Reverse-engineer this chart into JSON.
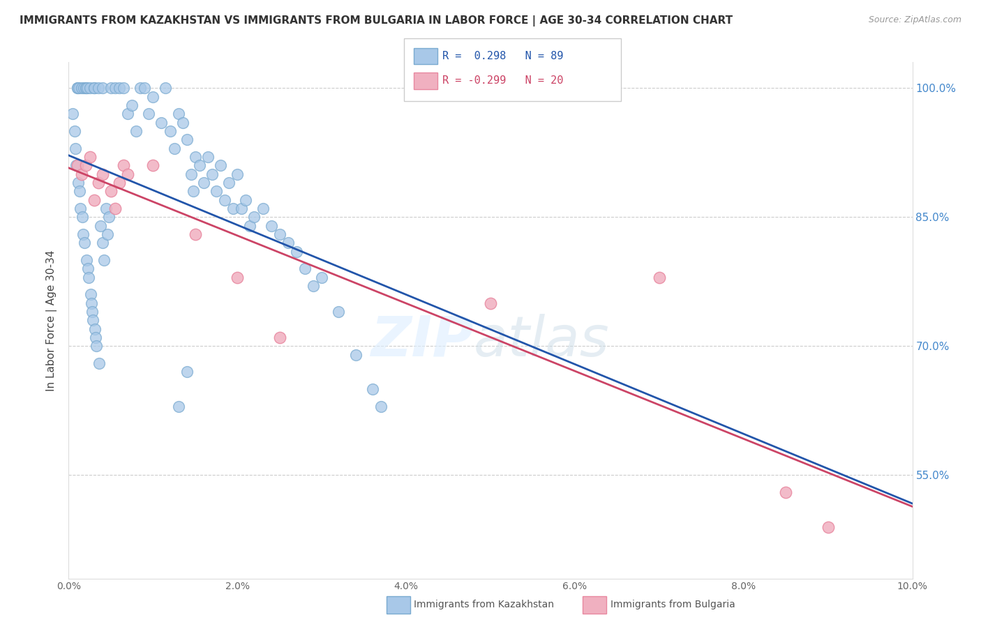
{
  "title": "IMMIGRANTS FROM KAZAKHSTAN VS IMMIGRANTS FROM BULGARIA IN LABOR FORCE | AGE 30-34 CORRELATION CHART",
  "source": "Source: ZipAtlas.com",
  "ylabel": "In Labor Force | Age 30-34",
  "legend_blue_label": "Immigrants from Kazakhstan",
  "legend_pink_label": "Immigrants from Bulgaria",
  "legend_blue_r": "R =  0.298",
  "legend_blue_n": "N = 89",
  "legend_pink_r": "R = -0.299",
  "legend_pink_n": "N = 20",
  "blue_color": "#a8c8e8",
  "pink_color": "#f0b0c0",
  "blue_edge_color": "#7aaad0",
  "pink_edge_color": "#e888a0",
  "blue_line_color": "#2255aa",
  "pink_line_color": "#cc4466",
  "xmin": 0.0,
  "xmax": 10.0,
  "ymin": 43.0,
  "ymax": 103.0,
  "ytick_vals": [
    55.0,
    70.0,
    85.0,
    100.0
  ],
  "xtick_vals": [
    0.0,
    2.0,
    4.0,
    6.0,
    8.0,
    10.0
  ],
  "kazakhstan_x": [
    0.05,
    0.07,
    0.08,
    0.09,
    0.1,
    0.1,
    0.11,
    0.12,
    0.13,
    0.14,
    0.15,
    0.16,
    0.17,
    0.18,
    0.19,
    0.2,
    0.2,
    0.21,
    0.22,
    0.23,
    0.24,
    0.25,
    0.26,
    0.27,
    0.28,
    0.29,
    0.3,
    0.3,
    0.31,
    0.32,
    0.33,
    0.35,
    0.36,
    0.38,
    0.4,
    0.4,
    0.42,
    0.44,
    0.46,
    0.48,
    0.5,
    0.55,
    0.6,
    0.65,
    0.7,
    0.75,
    0.8,
    0.85,
    0.9,
    0.95,
    1.0,
    1.1,
    1.15,
    1.2,
    1.25,
    1.3,
    1.35,
    1.4,
    1.45,
    1.48,
    1.5,
    1.55,
    1.6,
    1.65,
    1.7,
    1.75,
    1.8,
    1.85,
    1.9,
    1.95,
    2.0,
    2.05,
    2.1,
    2.15,
    2.2,
    2.3,
    2.4,
    2.5,
    2.6,
    2.7,
    2.8,
    2.9,
    3.0,
    3.2,
    3.4,
    3.6,
    3.7,
    1.3,
    1.4
  ],
  "kazakhstan_y": [
    97.0,
    95.0,
    93.0,
    91.0,
    100.0,
    100.0,
    89.0,
    100.0,
    88.0,
    86.0,
    100.0,
    85.0,
    83.0,
    100.0,
    82.0,
    100.0,
    100.0,
    80.0,
    100.0,
    79.0,
    78.0,
    100.0,
    76.0,
    75.0,
    74.0,
    73.0,
    100.0,
    100.0,
    72.0,
    71.0,
    70.0,
    100.0,
    68.0,
    84.0,
    82.0,
    100.0,
    80.0,
    86.0,
    83.0,
    85.0,
    100.0,
    100.0,
    100.0,
    100.0,
    97.0,
    98.0,
    95.0,
    100.0,
    100.0,
    97.0,
    99.0,
    96.0,
    100.0,
    95.0,
    93.0,
    97.0,
    96.0,
    94.0,
    90.0,
    88.0,
    92.0,
    91.0,
    89.0,
    92.0,
    90.0,
    88.0,
    91.0,
    87.0,
    89.0,
    86.0,
    90.0,
    86.0,
    87.0,
    84.0,
    85.0,
    86.0,
    84.0,
    83.0,
    82.0,
    81.0,
    79.0,
    77.0,
    78.0,
    74.0,
    69.0,
    65.0,
    63.0,
    63.0,
    67.0
  ],
  "bulgaria_x": [
    0.1,
    0.15,
    0.2,
    0.25,
    0.3,
    0.35,
    0.4,
    0.5,
    0.55,
    0.6,
    0.65,
    0.7,
    1.0,
    1.5,
    2.0,
    2.5,
    5.0,
    7.0,
    8.5,
    9.0
  ],
  "bulgaria_y": [
    91.0,
    90.0,
    91.0,
    92.0,
    87.0,
    89.0,
    90.0,
    88.0,
    86.0,
    89.0,
    91.0,
    90.0,
    91.0,
    83.0,
    78.0,
    71.0,
    75.0,
    78.0,
    53.0,
    49.0
  ]
}
